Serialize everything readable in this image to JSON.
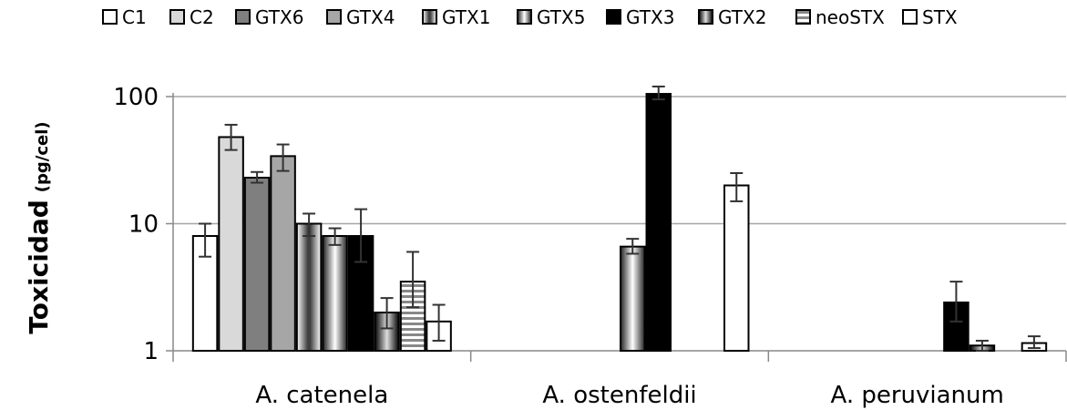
{
  "chart_data": {
    "type": "bar",
    "ylabel": "Toxicidad",
    "ylabel_unit": "(pg/cel)",
    "yscale": "log",
    "ylim": [
      1,
      100
    ],
    "yticks": [
      {
        "value": 1,
        "label": "1"
      },
      {
        "value": 10,
        "label": "10"
      },
      {
        "value": 100,
        "label": "100"
      }
    ],
    "grid": true,
    "legend_position": "top",
    "categories": [
      "A. catenela",
      "A. ostenfeldii",
      "A. peruvianum"
    ],
    "series": [
      {
        "name": "C1",
        "fill": "#ffffff",
        "values": [
          8,
          null,
          null
        ],
        "err": [
          [
            5.5,
            10
          ],
          null,
          null
        ]
      },
      {
        "name": "C2",
        "fill": "#d9d9d9",
        "values": [
          48,
          null,
          null
        ],
        "err": [
          [
            38,
            60
          ],
          null,
          null
        ]
      },
      {
        "name": "GTX6",
        "fill": "#7f7f7f",
        "values": [
          23,
          null,
          null
        ],
        "err": [
          [
            21,
            25.5
          ],
          null,
          null
        ]
      },
      {
        "name": "GTX4",
        "fill": "#a6a6a6",
        "values": [
          34,
          null,
          null
        ],
        "err": [
          [
            26,
            42
          ],
          null,
          null
        ]
      },
      {
        "name": "GTX1",
        "fill": "pattern-diag",
        "values": [
          10,
          null,
          null
        ],
        "err": [
          [
            8,
            12
          ],
          null,
          null
        ]
      },
      {
        "name": "GTX5",
        "fill": "pattern-v",
        "values": [
          8,
          6.6,
          null
        ],
        "err": [
          [
            6.8,
            9.2
          ],
          [
            5.8,
            7.6
          ],
          null
        ]
      },
      {
        "name": "GTX3",
        "fill": "#000000",
        "values": [
          8,
          105,
          2.4
        ],
        "err": [
          [
            5,
            13
          ],
          [
            95,
            120
          ],
          [
            1.7,
            3.5
          ]
        ]
      },
      {
        "name": "GTX2",
        "fill": "pattern-h",
        "values": [
          2,
          null,
          1.1
        ],
        "err": [
          [
            1.5,
            2.6
          ],
          null,
          [
            1.0,
            1.2
          ]
        ]
      },
      {
        "name": "neoSTX",
        "fill": "pattern-stripe",
        "values": [
          3.5,
          null,
          null
        ],
        "err": [
          [
            2.2,
            6
          ],
          null,
          null
        ]
      },
      {
        "name": "STX",
        "fill": "#ffffff",
        "values": [
          1.7,
          20,
          1.15
        ],
        "err": [
          [
            1.2,
            2.3
          ],
          [
            15,
            25
          ],
          [
            1.05,
            1.3
          ]
        ]
      }
    ]
  }
}
